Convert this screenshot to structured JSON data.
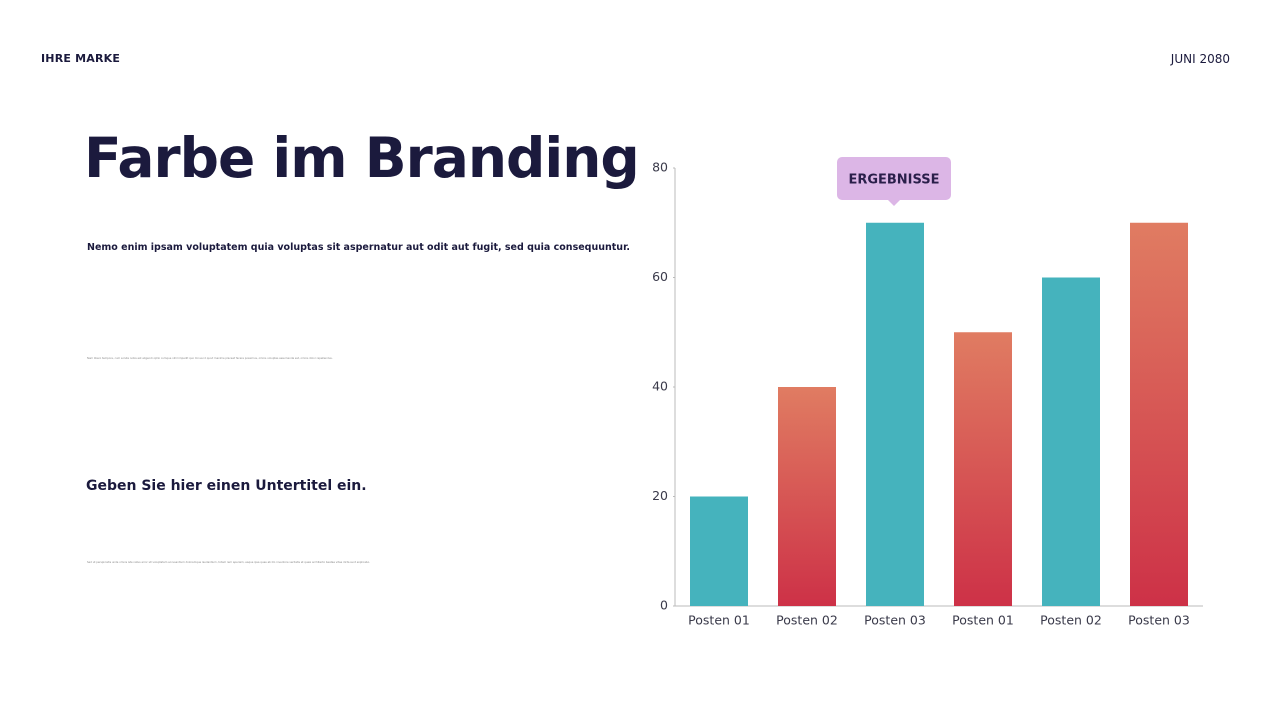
{
  "header": {
    "brand": "IHRE MARKE",
    "date": "JUNI 2080"
  },
  "title": "Farbe im Branding",
  "lead": "Nemo enim ipsam voluptatem quia voluptas sit aspernatur aut odit aut fugit, sed quia consequuntur.",
  "body_1": "Nam libero tempore, cum soluta nobis est eligendi optio cumque nihil impedit quo minus id quod maxime placeat facere possimus, omnis voluptas assumenda est, omnis dolor repellendus.",
  "subtitle": "Geben Sie hier einen Untertitel ein.",
  "body_2": "Sed ut perspiciatis unde omnis iste natus error sit voluptatem accusantium doloremque laudantium, totam rem aperiam, eaque ipsa quae ab illo inventore veritatis et quasi architecto beatae vitae dicta sunt explicabo.",
  "chart_data": {
    "type": "bar",
    "categories": [
      "Posten 01",
      "Posten 02",
      "Posten 03",
      "Posten 01",
      "Posten 02",
      "Posten 03"
    ],
    "values": [
      20,
      40,
      70,
      50,
      60,
      70
    ],
    "colors": [
      [
        "#45b3bd",
        "#45b3bd"
      ],
      [
        "#e07c62",
        "#cd3147"
      ],
      [
        "#45b3bd",
        "#45b3bd"
      ],
      [
        "#e07c62",
        "#cd3147"
      ],
      [
        "#45b3bd",
        "#45b3bd"
      ],
      [
        "#e07c62",
        "#cd3147"
      ]
    ],
    "ylim": [
      0,
      80
    ],
    "yticks": [
      0,
      20,
      40,
      60,
      80
    ],
    "grid": false,
    "annotation": "ERGEBNISSE"
  }
}
